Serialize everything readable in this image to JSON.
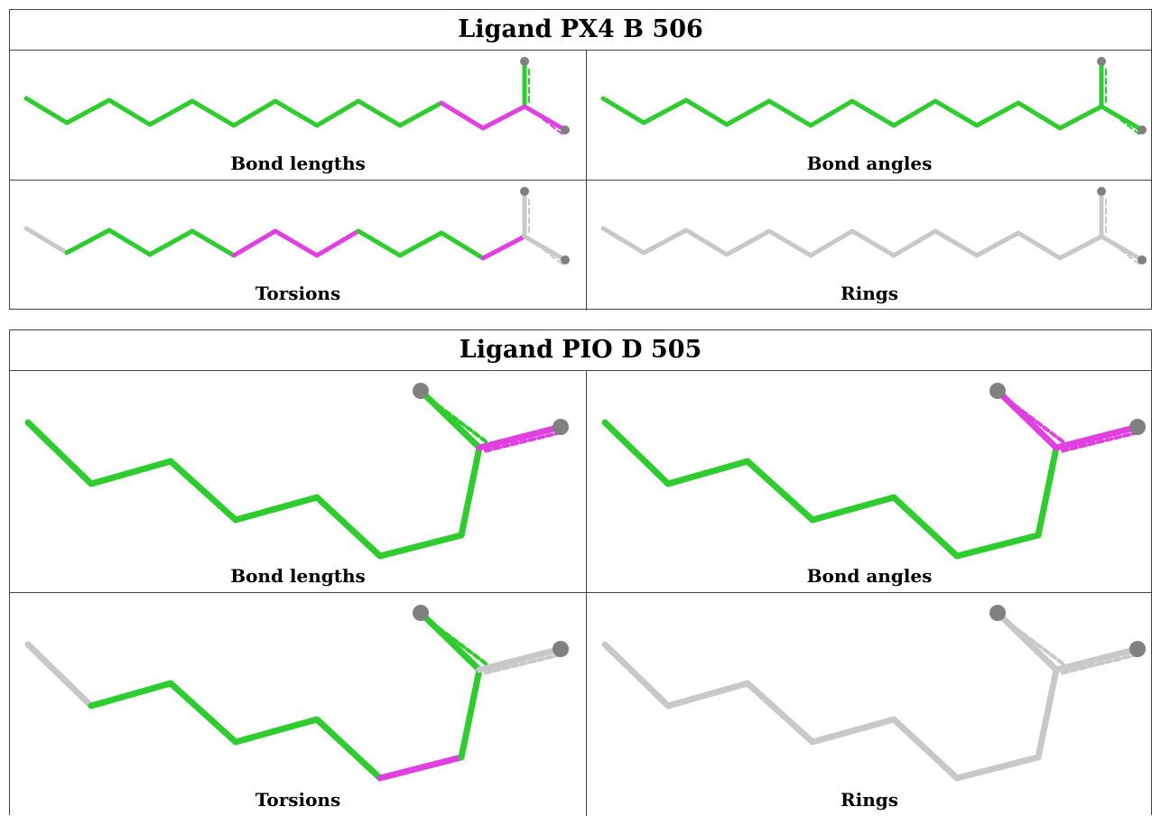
{
  "colors": {
    "ok": "#2ecc2e",
    "outlier": "#e040e0",
    "none": "#c8c8c8",
    "atom": "#808080"
  },
  "panels": [
    {
      "title": "Ligand PX4 B 506",
      "cells": [
        {
          "label": "Bond lengths",
          "colors": [
            "ok",
            "ok",
            "ok",
            "ok",
            "ok",
            "ok",
            "ok",
            "ok",
            "ok",
            "ok",
            "outlier",
            "outlier",
            "ok",
            "outlier"
          ]
        },
        {
          "label": "Bond angles",
          "colors": [
            "ok",
            "ok",
            "ok",
            "ok",
            "ok",
            "ok",
            "ok",
            "ok",
            "ok",
            "ok",
            "ok",
            "ok",
            "ok",
            "ok"
          ]
        },
        {
          "label": "Torsions",
          "colors": [
            "none",
            "ok",
            "ok",
            "ok",
            "ok",
            "outlier",
            "outlier",
            "outlier",
            "ok",
            "ok",
            "ok",
            "outlier",
            "none",
            "none"
          ]
        },
        {
          "label": "Rings",
          "colors": [
            "none",
            "none",
            "none",
            "none",
            "none",
            "none",
            "none",
            "none",
            "none",
            "none",
            "none",
            "none",
            "none",
            "none"
          ]
        }
      ]
    },
    {
      "title": "Ligand PIO D 505",
      "cells": [
        {
          "label": "Bond lengths",
          "colors": [
            "ok",
            "ok",
            "ok",
            "ok",
            "ok",
            "ok",
            "ok",
            "ok",
            "outlier",
            "outlier"
          ]
        },
        {
          "label": "Bond angles",
          "colors": [
            "ok",
            "ok",
            "ok",
            "ok",
            "ok",
            "ok",
            "ok",
            "outlier",
            "outlier",
            "outlier"
          ]
        },
        {
          "label": "Torsions",
          "colors": [
            "none",
            "ok",
            "ok",
            "ok",
            "ok",
            "outlier",
            "ok",
            "ok",
            "none",
            "none"
          ]
        },
        {
          "label": "Rings",
          "colors": [
            "none",
            "none",
            "none",
            "none",
            "none",
            "none",
            "none",
            "none",
            "none",
            "none"
          ]
        }
      ]
    }
  ]
}
